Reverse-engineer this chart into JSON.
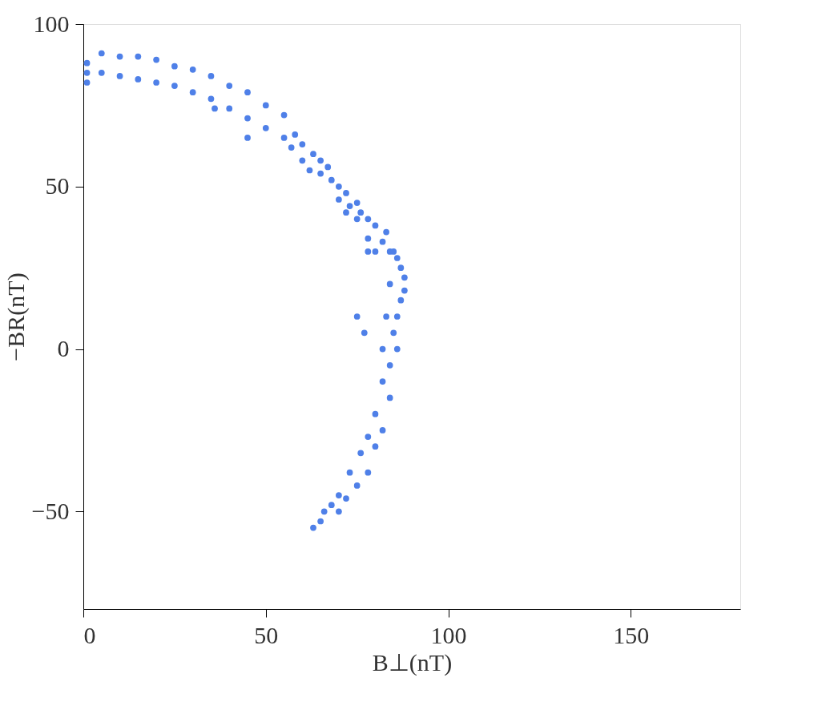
{
  "chart_data": {
    "type": "scatter",
    "xlabel": "B⊥(nT)",
    "ylabel": "−BR(nT)",
    "xlim": [
      0,
      180
    ],
    "ylim": [
      -80,
      100
    ],
    "xticks": [
      0,
      50,
      100,
      150
    ],
    "yticks": [
      -50,
      0,
      50,
      100
    ],
    "grid": false,
    "marker": "circle",
    "series": [
      {
        "color": "#4f80e8",
        "x": [
          1,
          1,
          1,
          5,
          5,
          10,
          10,
          15,
          15,
          20,
          20,
          25,
          25,
          30,
          30,
          35,
          35,
          40,
          40,
          45,
          45,
          50,
          50,
          55,
          55,
          58,
          60,
          60,
          63,
          65,
          65,
          67,
          68,
          70,
          70,
          72,
          73,
          75,
          75,
          76,
          78,
          78,
          80,
          80,
          82,
          83,
          84,
          85,
          86,
          87,
          88,
          88,
          87,
          84,
          86,
          83,
          85,
          82,
          84,
          86,
          82,
          84,
          80,
          82,
          78,
          80,
          76,
          78,
          73,
          75,
          70,
          72,
          68,
          70,
          66,
          63,
          65,
          57,
          62,
          72,
          78,
          75,
          77,
          45,
          36
        ],
        "values": [
          88,
          85,
          82,
          91,
          85,
          90,
          84,
          90,
          83,
          89,
          82,
          87,
          81,
          86,
          79,
          84,
          77,
          81,
          74,
          79,
          71,
          75,
          68,
          72,
          65,
          66,
          63,
          58,
          60,
          58,
          54,
          56,
          52,
          50,
          46,
          48,
          44,
          45,
          40,
          42,
          40,
          34,
          38,
          30,
          33,
          36,
          30,
          30,
          28,
          25,
          22,
          18,
          15,
          20,
          10,
          10,
          5,
          0,
          -5,
          0,
          -10,
          -15,
          -20,
          -25,
          -27,
          -30,
          -32,
          -38,
          -38,
          -42,
          -45,
          -46,
          -48,
          -50,
          -50,
          -55,
          -53,
          62,
          55,
          42,
          30,
          10,
          5,
          65,
          74
        ]
      }
    ]
  }
}
